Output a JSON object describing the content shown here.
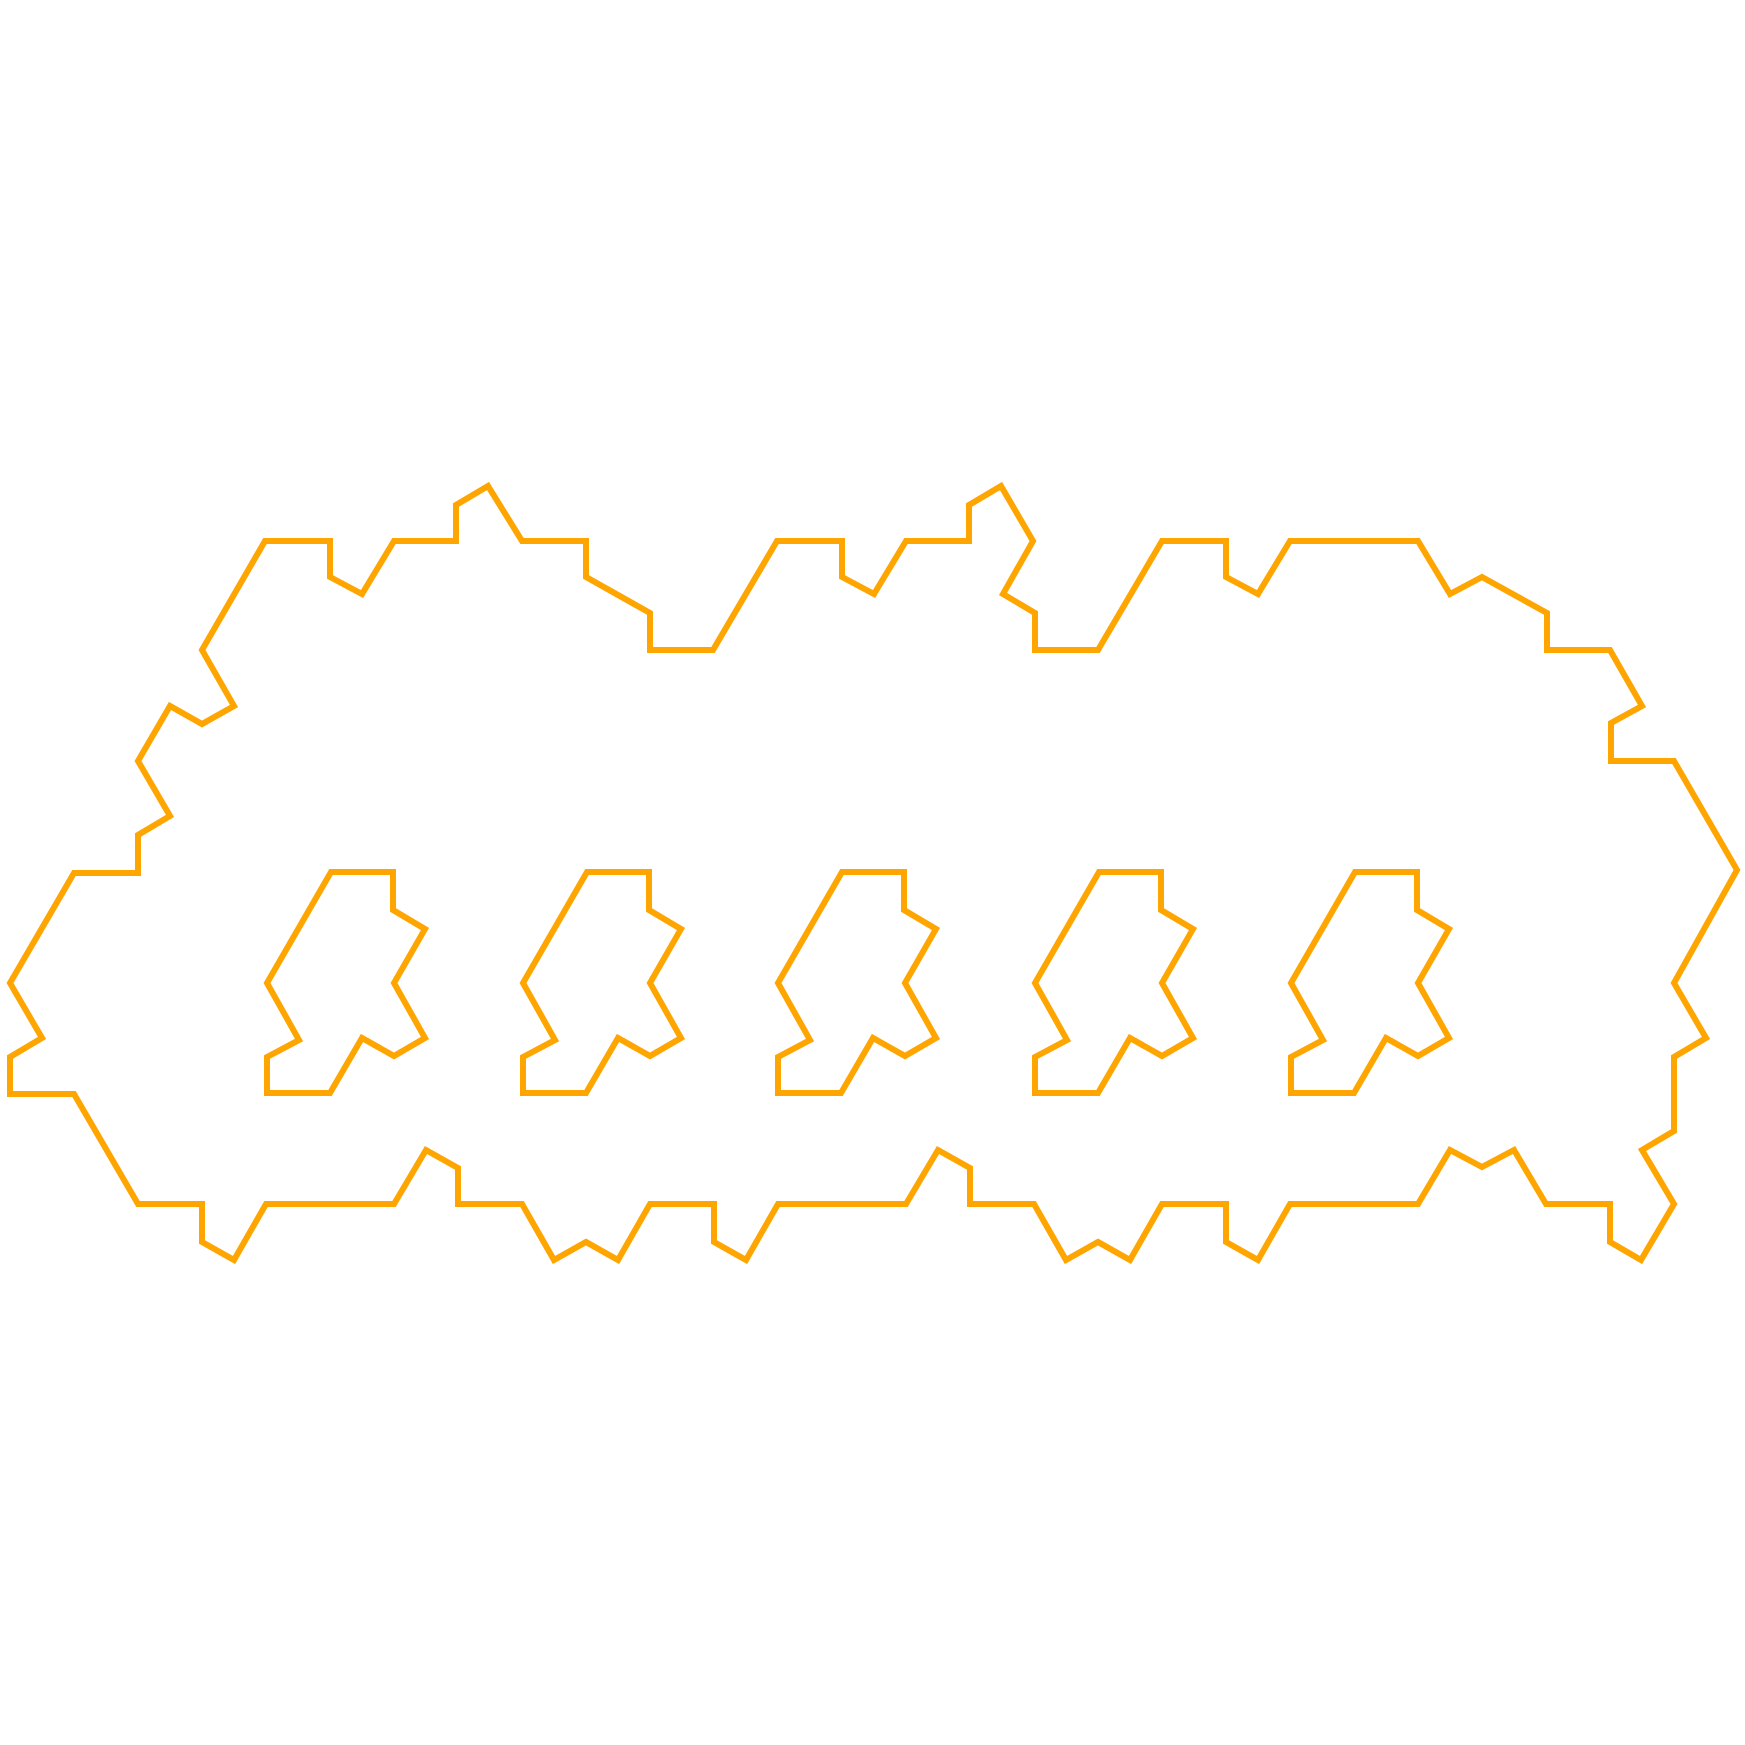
{
  "figure": {
    "background_color": "#ffffff",
    "stroke_color": "#ffa500",
    "shapes": [
      {
        "name": "outer-boundary"
      },
      {
        "name": "hole-1"
      },
      {
        "name": "hole-2"
      },
      {
        "name": "hole-3"
      },
      {
        "name": "hole-4"
      },
      {
        "name": "hole-5"
      }
    ]
  }
}
